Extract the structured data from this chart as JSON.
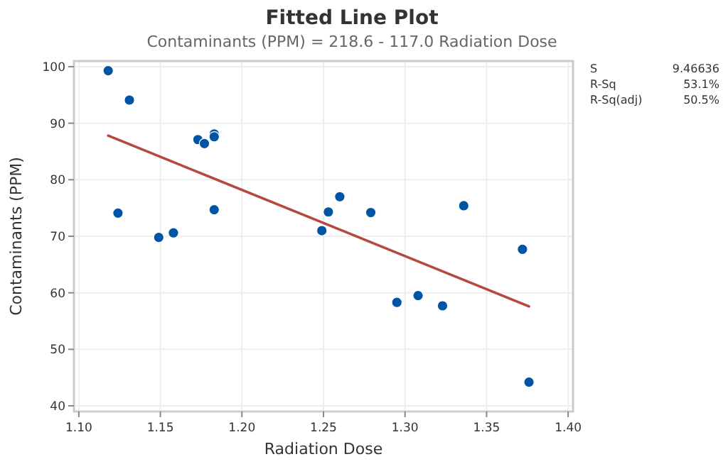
{
  "chart_data": {
    "type": "scatter",
    "title": "Fitted Line Plot",
    "subtitle": "Contaminants (PPM) = 218.6 - 117.0 Radiation Dose",
    "xlabel": "Radiation Dose",
    "ylabel": "Contaminants (PPM)",
    "xlim": [
      1.097,
      1.403
    ],
    "xticks": [
      {
        "value": 1.1,
        "label": "1.10"
      },
      {
        "value": 1.15,
        "label": "1.15"
      },
      {
        "value": 1.2,
        "label": "1.20"
      },
      {
        "value": 1.25,
        "label": "1.25"
      },
      {
        "value": 1.3,
        "label": "1.30"
      },
      {
        "value": 1.35,
        "label": "1.35"
      },
      {
        "value": 1.4,
        "label": "1.40"
      }
    ],
    "ylim": [
      39,
      101
    ],
    "yticks": [
      40,
      50,
      60,
      70,
      80,
      90,
      100
    ],
    "grid": true,
    "series": [
      {
        "marker": "circle",
        "color": "#0054a6",
        "x": [
          1.118,
          1.131,
          1.124,
          1.149,
          1.158,
          1.173,
          1.177,
          1.183,
          1.183,
          1.183,
          1.249,
          1.253,
          1.26,
          1.279,
          1.295,
          1.308,
          1.323,
          1.336,
          1.372,
          1.376
        ],
        "values": [
          99.3,
          94.1,
          74.1,
          69.8,
          70.6,
          87.1,
          86.4,
          88.1,
          87.6,
          74.7,
          71.0,
          74.3,
          77.0,
          74.2,
          58.3,
          59.5,
          57.7,
          75.4,
          67.7,
          44.2
        ]
      },
      {
        "type": "line",
        "color": "#b5493f",
        "x": [
          1.118,
          1.376
        ],
        "values": [
          87.8,
          57.6
        ]
      }
    ],
    "annotations": [
      "S 9.46636",
      "R-Sq 53.1%",
      "R-Sq(adj) 50.5%"
    ]
  }
}
